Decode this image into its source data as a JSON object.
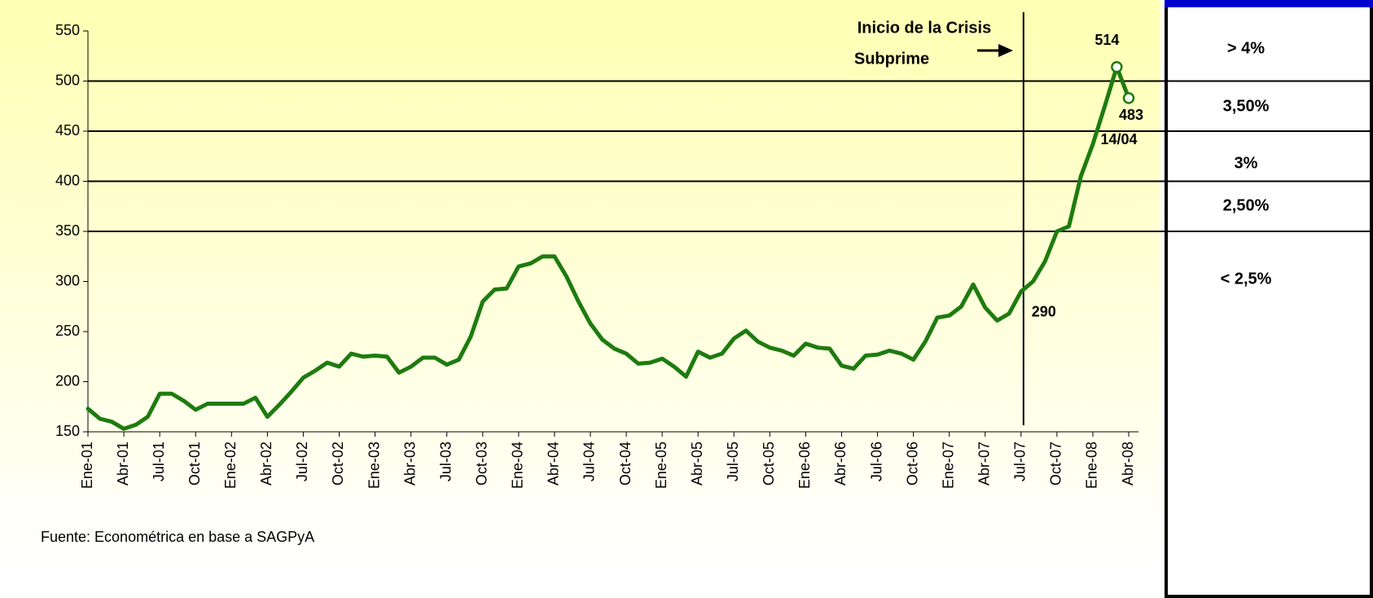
{
  "chart_data": {
    "type": "line",
    "categories": [
      "Ene-01",
      null,
      null,
      "Abr-01",
      null,
      null,
      "Jul-01",
      null,
      null,
      "Oct-01",
      null,
      null,
      "Ene-02",
      null,
      null,
      "Abr-02",
      null,
      null,
      "Jul-02",
      null,
      null,
      "Oct-02",
      null,
      null,
      "Ene-03",
      null,
      null,
      "Abr-03",
      null,
      null,
      "Jul-03",
      null,
      null,
      "Oct-03",
      null,
      null,
      "Ene-04",
      null,
      null,
      "Abr-04",
      null,
      null,
      "Jul-04",
      null,
      null,
      "Oct-04",
      null,
      null,
      "Ene-05",
      null,
      null,
      "Abr-05",
      null,
      null,
      "Jul-05",
      null,
      null,
      "Oct-05",
      null,
      null,
      "Ene-06",
      null,
      null,
      "Abr-06",
      null,
      null,
      "Jul-06",
      null,
      null,
      "Oct-06",
      null,
      null,
      "Ene-07",
      null,
      null,
      "Abr-07",
      null,
      null,
      "Jul-07",
      null,
      null,
      "Oct-07",
      null,
      null,
      "Ene-08",
      null,
      null,
      "Abr-08"
    ],
    "values": [
      173,
      163,
      160,
      153,
      157,
      165,
      188,
      188,
      181,
      172,
      178,
      178,
      178,
      178,
      184,
      165,
      177,
      190,
      204,
      211,
      219,
      215,
      228,
      225,
      226,
      225,
      209,
      215,
      224,
      224,
      217,
      222,
      245,
      280,
      292,
      293,
      315,
      318,
      325,
      325,
      305,
      280,
      258,
      242,
      233,
      228,
      218,
      219,
      223,
      215,
      205,
      230,
      224,
      228,
      243,
      251,
      240,
      234,
      231,
      226,
      238,
      234,
      233,
      216,
      213,
      226,
      227,
      231,
      228,
      222,
      240,
      264,
      266,
      275,
      297,
      274,
      261,
      268,
      290,
      300,
      320,
      350,
      355,
      405,
      437,
      475,
      514,
      483
    ],
    "color": "#1e7b0f",
    "ylim": [
      150,
      550
    ],
    "yticks": [
      150,
      200,
      250,
      300,
      350,
      400,
      450,
      500,
      550
    ],
    "labeled_points": [
      78,
      86,
      87
    ],
    "marked_points": [
      86,
      87
    ],
    "event": {
      "index": 78,
      "label": [
        "Inicio de la Crisis",
        "Subprime"
      ]
    },
    "date_note": "14/04",
    "thresholds": [
      500,
      450,
      400,
      350
    ],
    "band_labels": [
      "> 4%",
      "3,50%",
      "3%",
      "2,50%",
      "< 2,5%"
    ],
    "source": "Fuente: Econométrica en base a SAGPyA"
  }
}
